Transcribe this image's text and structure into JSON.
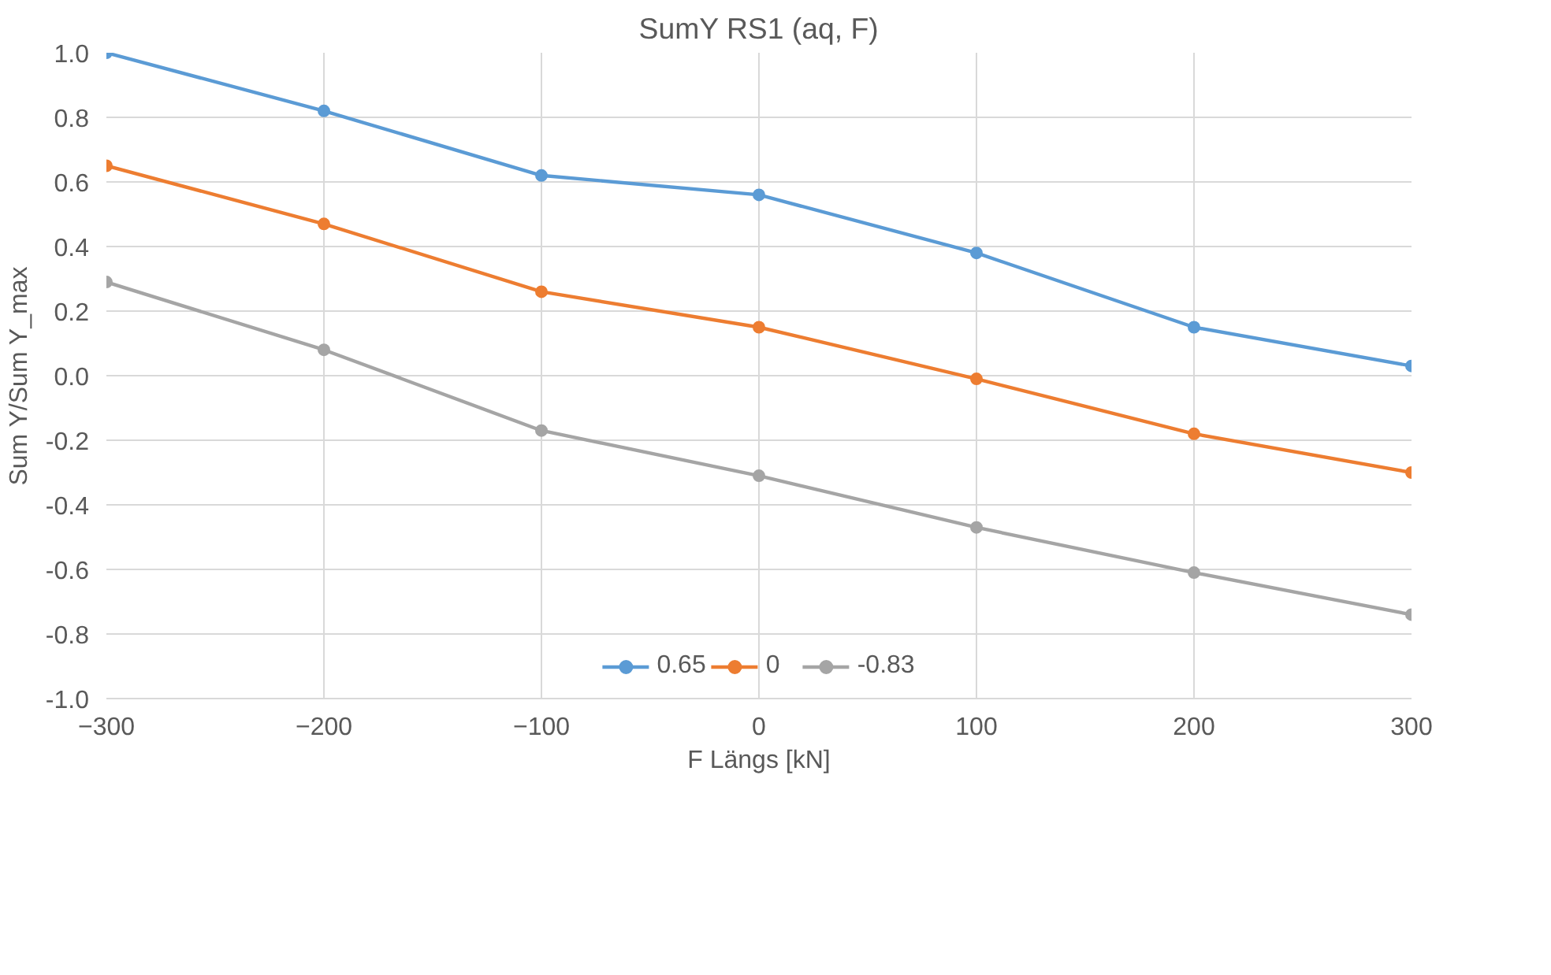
{
  "chart_data": {
    "type": "line",
    "title": "SumY RS1 (aq, F)",
    "xlabel": "F Längs [kN]",
    "ylabel": "Sum Y/Sum Y_max",
    "x": [
      -300,
      -200,
      -100,
      0,
      100,
      200,
      300
    ],
    "series": [
      {
        "name": "0.65",
        "color": "#5b9bd5",
        "values": [
          1.0,
          0.82,
          0.62,
          0.56,
          0.38,
          0.15,
          0.03
        ]
      },
      {
        "name": "0",
        "color": "#ed7d31",
        "values": [
          0.65,
          0.47,
          0.26,
          0.15,
          -0.01,
          -0.18,
          -0.3
        ]
      },
      {
        "name": "-0.83",
        "color": "#a5a5a5",
        "values": [
          0.29,
          0.08,
          -0.17,
          -0.31,
          -0.47,
          -0.61,
          -0.74
        ]
      }
    ],
    "xlim": [
      -300,
      300
    ],
    "xticks": [
      -300,
      -200,
      -100,
      0,
      100,
      200,
      300
    ],
    "ylim": [
      -1.0,
      1.0
    ],
    "yticks": [
      {
        "value": -1.0,
        "label": "-1.0"
      },
      {
        "value": -0.8,
        "label": "-0.8"
      },
      {
        "value": -0.6,
        "label": "-0.6"
      },
      {
        "value": -0.4,
        "label": "-0.4"
      },
      {
        "value": -0.2,
        "label": "-0.2"
      },
      {
        "value": 0.0,
        "label": "0.0"
      },
      {
        "value": 0.2,
        "label": "0.2"
      },
      {
        "value": 0.4,
        "label": "0.4"
      },
      {
        "value": 0.6,
        "label": "0.6"
      },
      {
        "value": 0.8,
        "label": "0.8"
      },
      {
        "value": 1.0,
        "label": "1.0"
      }
    ],
    "grid": true,
    "legend": "bottom",
    "marker": "circle",
    "line_style": "solid"
  }
}
